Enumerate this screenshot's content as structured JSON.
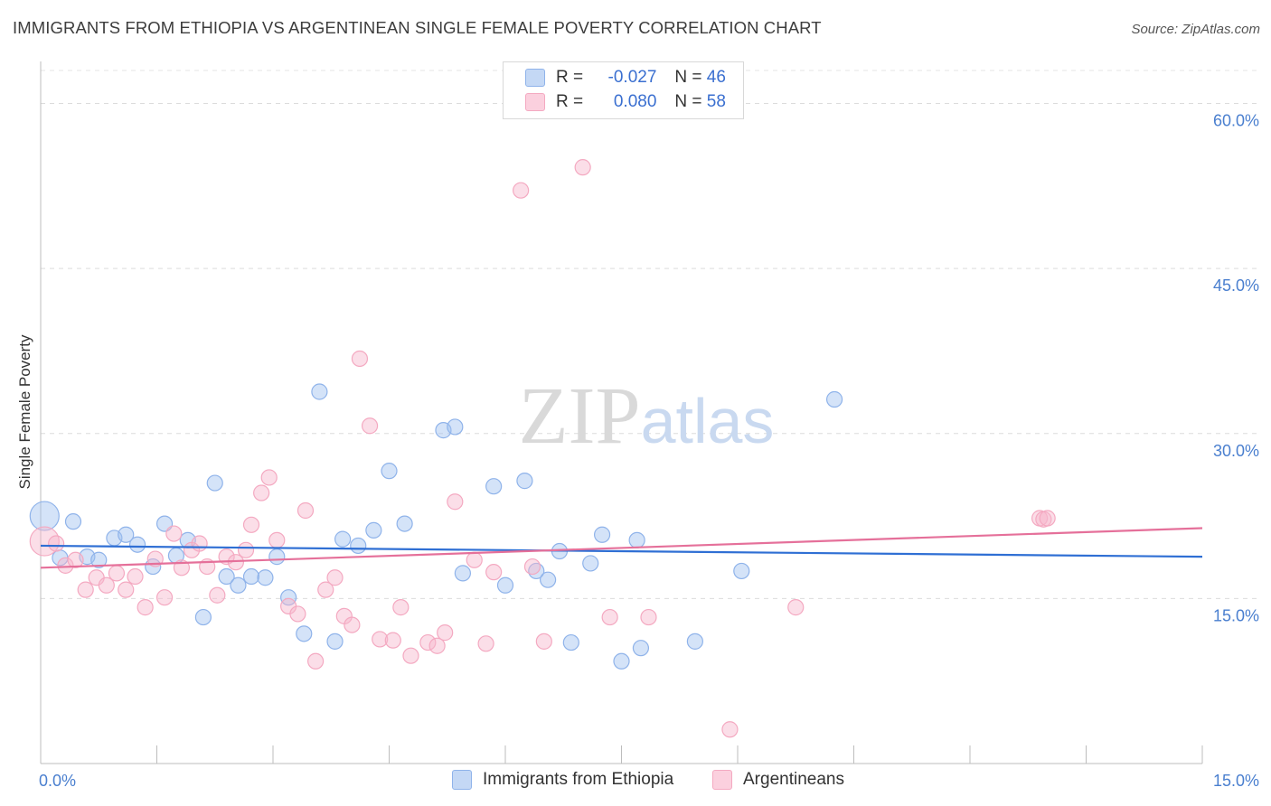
{
  "chart_data": {
    "type": "scatter",
    "title": "IMMIGRANTS FROM ETHIOPIA VS ARGENTINEAN SINGLE FEMALE POVERTY CORRELATION CHART",
    "source": "Source: ZipAtlas.com",
    "xlabel": "",
    "ylabel": "Single Female Poverty",
    "xlim": [
      0,
      15
    ],
    "ylim": [
      0,
      63
    ],
    "x_tick_labels": [
      "0.0%",
      "15.0%"
    ],
    "y_ticks": [
      15,
      30,
      45,
      60
    ],
    "y_tick_labels": [
      "15.0%",
      "30.0%",
      "45.0%",
      "60.0%"
    ],
    "watermark": "ZIPatlas",
    "legend": {
      "rows": [
        {
          "r_label": "R =",
          "r_value": "-0.027",
          "n_label": "N =",
          "n_value": "46"
        },
        {
          "r_label": "R =",
          "r_value": "0.080",
          "n_label": "N =",
          "n_value": "58"
        }
      ]
    },
    "series": [
      {
        "name": "Immigrants from Ethiopia",
        "color": "#8fb3ea",
        "line_color": "#2f6fd4",
        "trend": {
          "x0": 0,
          "y0": 19.8,
          "x1": 15,
          "y1": 18.8
        },
        "points": [
          [
            0.05,
            22.5
          ],
          [
            0.25,
            18.7
          ],
          [
            0.42,
            22.0
          ],
          [
            0.6,
            18.8
          ],
          [
            0.75,
            18.5
          ],
          [
            0.95,
            20.5
          ],
          [
            1.1,
            20.8
          ],
          [
            1.25,
            19.9
          ],
          [
            1.45,
            17.9
          ],
          [
            1.6,
            21.8
          ],
          [
            1.75,
            18.9
          ],
          [
            1.9,
            20.3
          ],
          [
            2.1,
            13.3
          ],
          [
            2.25,
            25.5
          ],
          [
            2.4,
            17.0
          ],
          [
            2.55,
            16.2
          ],
          [
            2.72,
            17.0
          ],
          [
            2.9,
            16.9
          ],
          [
            3.05,
            18.8
          ],
          [
            3.2,
            15.1
          ],
          [
            3.4,
            11.8
          ],
          [
            3.6,
            33.8
          ],
          [
            3.8,
            11.1
          ],
          [
            3.9,
            20.4
          ],
          [
            4.1,
            19.8
          ],
          [
            4.3,
            21.2
          ],
          [
            4.5,
            26.6
          ],
          [
            4.7,
            21.8
          ],
          [
            5.2,
            30.3
          ],
          [
            5.35,
            30.6
          ],
          [
            5.45,
            17.3
          ],
          [
            5.85,
            25.2
          ],
          [
            6.0,
            16.2
          ],
          [
            6.25,
            25.7
          ],
          [
            6.4,
            17.5
          ],
          [
            6.55,
            16.7
          ],
          [
            6.7,
            19.3
          ],
          [
            6.85,
            11.0
          ],
          [
            7.1,
            18.2
          ],
          [
            7.25,
            20.8
          ],
          [
            7.5,
            9.3
          ],
          [
            7.7,
            20.3
          ],
          [
            7.75,
            10.5
          ],
          [
            8.45,
            11.1
          ],
          [
            9.05,
            17.5
          ],
          [
            10.25,
            33.1
          ]
        ]
      },
      {
        "name": "Argentineans",
        "color": "#f4a9c1",
        "line_color": "#e5709a",
        "trend": {
          "x0": 0,
          "y0": 17.8,
          "x1": 15,
          "y1": 21.4
        },
        "points": [
          [
            0.05,
            20.2
          ],
          [
            0.2,
            20.0
          ],
          [
            0.32,
            18.0
          ],
          [
            0.45,
            18.5
          ],
          [
            0.58,
            15.8
          ],
          [
            0.72,
            16.9
          ],
          [
            0.85,
            16.2
          ],
          [
            0.98,
            17.3
          ],
          [
            1.1,
            15.8
          ],
          [
            1.22,
            17.0
          ],
          [
            1.35,
            14.2
          ],
          [
            1.48,
            18.6
          ],
          [
            1.6,
            15.1
          ],
          [
            1.72,
            20.9
          ],
          [
            1.82,
            17.8
          ],
          [
            1.95,
            19.4
          ],
          [
            2.05,
            20.0
          ],
          [
            2.15,
            17.9
          ],
          [
            2.28,
            15.3
          ],
          [
            2.4,
            18.8
          ],
          [
            2.52,
            18.3
          ],
          [
            2.65,
            19.4
          ],
          [
            2.72,
            21.7
          ],
          [
            2.85,
            24.6
          ],
          [
            2.95,
            26.0
          ],
          [
            3.05,
            20.3
          ],
          [
            3.2,
            14.3
          ],
          [
            3.32,
            13.6
          ],
          [
            3.42,
            23.0
          ],
          [
            3.55,
            9.3
          ],
          [
            3.68,
            15.8
          ],
          [
            3.8,
            16.9
          ],
          [
            3.92,
            13.4
          ],
          [
            4.02,
            12.6
          ],
          [
            4.12,
            36.8
          ],
          [
            4.25,
            30.7
          ],
          [
            4.38,
            11.3
          ],
          [
            4.55,
            11.2
          ],
          [
            4.65,
            14.2
          ],
          [
            4.78,
            9.8
          ],
          [
            5.0,
            11.0
          ],
          [
            5.12,
            10.7
          ],
          [
            5.22,
            11.9
          ],
          [
            5.35,
            23.8
          ],
          [
            5.6,
            18.5
          ],
          [
            5.75,
            10.9
          ],
          [
            5.85,
            17.4
          ],
          [
            6.2,
            52.1
          ],
          [
            6.35,
            17.9
          ],
          [
            6.5,
            11.1
          ],
          [
            7.0,
            54.2
          ],
          [
            7.35,
            13.3
          ],
          [
            7.85,
            13.3
          ],
          [
            8.9,
            3.1
          ],
          [
            9.75,
            14.2
          ],
          [
            12.9,
            22.3
          ],
          [
            12.95,
            22.2
          ],
          [
            13.0,
            22.3
          ]
        ]
      }
    ]
  }
}
